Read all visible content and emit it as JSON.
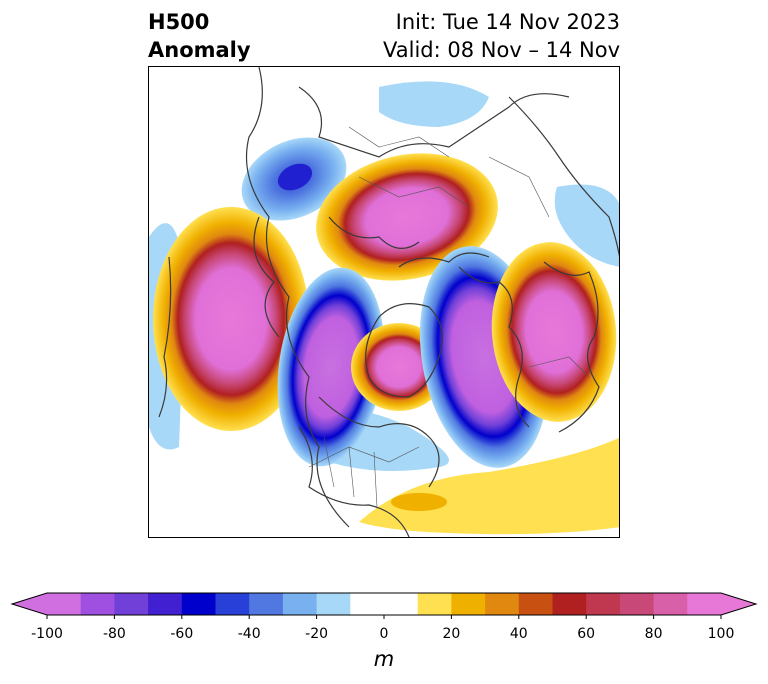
{
  "header": {
    "title_line1": "H500",
    "title_line2": "Anomaly",
    "init": "Init: Tue 14 Nov 2023",
    "valid": "Valid: 08 Nov – 14 Nov"
  },
  "colorbar": {
    "min": -100,
    "max": 100,
    "step": 10,
    "ticks": [
      "-100",
      "-80",
      "-60",
      "-40",
      "-20",
      "0",
      "20",
      "40",
      "60",
      "80",
      "100"
    ],
    "unit": "m",
    "colors": [
      "#d070e0",
      "#a050e0",
      "#7040d8",
      "#4020d0",
      "#0000cc",
      "#2840d8",
      "#5078e0",
      "#78b0f0",
      "#a8d8f8",
      "#ffffff",
      "#ffffff",
      "#ffe050",
      "#f0b000",
      "#e08810",
      "#c85010",
      "#b02020",
      "#c03850",
      "#c84878",
      "#d860a8",
      "#e878d8"
    ]
  }
}
